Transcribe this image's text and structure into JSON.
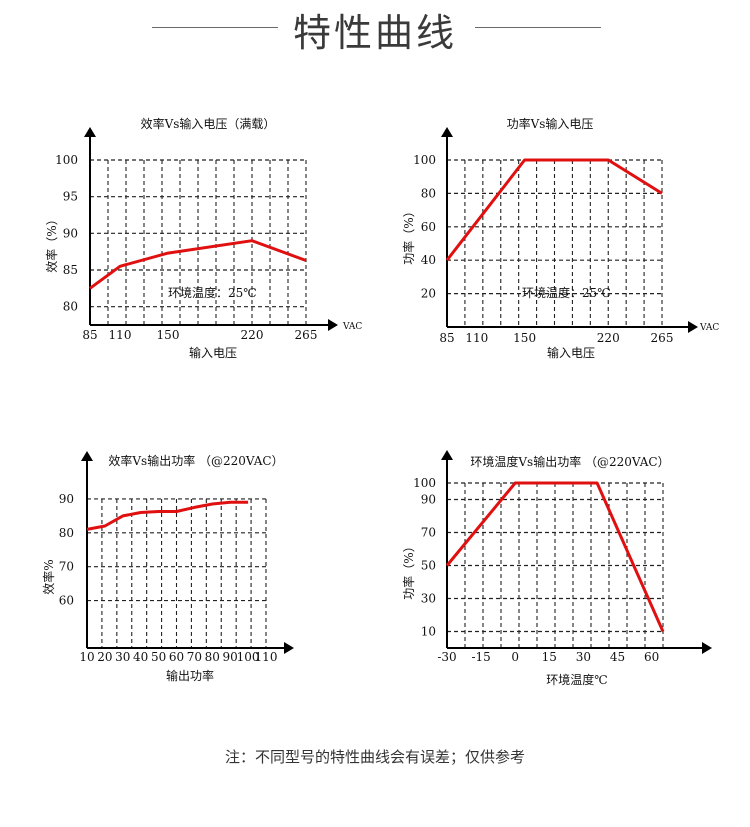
{
  "header": {
    "title": "特性曲线"
  },
  "chart_data": [
    {
      "type": "line",
      "title": "效率Vs输入电压（满载）",
      "xlabel": "输入电压",
      "ylabel": "效率（%）",
      "x_unit": "VAC",
      "x_ticks": [
        85,
        110,
        150,
        220,
        265
      ],
      "y_ticks": [
        80,
        85,
        90,
        95,
        100
      ],
      "xlim": [
        85,
        265
      ],
      "ylim": [
        77.5,
        100
      ],
      "grid": true,
      "annotation": "环境温度：25℃",
      "series": [
        {
          "x": [
            85,
            110,
            150,
            220,
            265
          ],
          "y": [
            82.5,
            85.5,
            87.3,
            89,
            86.3
          ]
        }
      ]
    },
    {
      "type": "line",
      "title": "功率Vs输入电压",
      "xlabel": "输入电压",
      "ylabel": "功率（%）",
      "x_unit": "VAC",
      "x_ticks": [
        85,
        110,
        150,
        220,
        265
      ],
      "y_ticks": [
        20,
        40,
        60,
        80,
        100
      ],
      "xlim": [
        85,
        265
      ],
      "ylim": [
        0,
        100
      ],
      "grid": true,
      "annotation": "环境温度：25℃",
      "series": [
        {
          "x": [
            85,
            150,
            220,
            265
          ],
          "y": [
            40,
            100,
            100,
            80
          ]
        }
      ]
    },
    {
      "type": "line",
      "title": "效率Vs输出功率 （@220VAC）",
      "xlabel": "输出功率",
      "ylabel": "效率%",
      "x_ticks": [
        10,
        20,
        30,
        40,
        50,
        60,
        70,
        80,
        90,
        100,
        110
      ],
      "y_ticks": [
        60,
        70,
        80,
        90
      ],
      "xlim": [
        10,
        110
      ],
      "ylim": [
        46,
        95
      ],
      "grid": true,
      "series": [
        {
          "x": [
            10,
            20,
            30,
            40,
            50,
            60,
            70,
            80,
            90,
            100
          ],
          "y": [
            81,
            82,
            85,
            86,
            86.3,
            86.3,
            87.5,
            88.5,
            89,
            89
          ]
        }
      ]
    },
    {
      "type": "line",
      "title": "环境温度Vs输出功率 （@220VAC）",
      "xlabel": "环境温度℃",
      "ylabel": "功率（%）",
      "x_ticks": [
        -30,
        -15,
        0,
        15,
        30,
        45,
        60
      ],
      "y_ticks": [
        10,
        30,
        50,
        70,
        90,
        100
      ],
      "xlim": [
        -30,
        65
      ],
      "ylim": [
        0,
        100
      ],
      "grid": true,
      "series": [
        {
          "x": [
            -30,
            0,
            36,
            65
          ],
          "y": [
            50,
            100,
            100,
            10
          ]
        }
      ]
    }
  ],
  "note": "注：不同型号的特性曲线会有误差；仅供参考",
  "colors": {
    "curve": "#e01010",
    "grid": "#222222",
    "axis": "#000000",
    "header_line": "#6a6a6a"
  }
}
